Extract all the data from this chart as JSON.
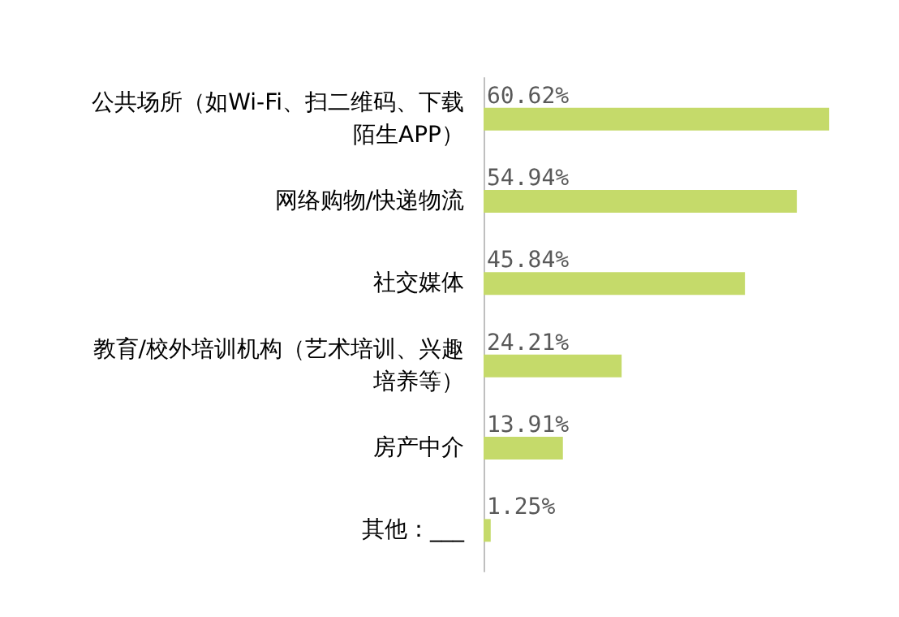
{
  "chart_data": {
    "type": "bar",
    "orientation": "horizontal",
    "categories": [
      "公共场所（如Wi-Fi、扫二维码、下载陌生APP）",
      "网络购物/快递物流",
      "社交媒体",
      "教育/校外培训机构（艺术培训、兴趣培养等）",
      "房产中介",
      "其他：___"
    ],
    "values": [
      60.62,
      54.94,
      45.84,
      24.21,
      13.91,
      1.25
    ],
    "value_labels": [
      "60.62%",
      "54.94%",
      "45.84%",
      "24.21%",
      "13.91%",
      "1.25%"
    ],
    "color": "#c5da6a"
  }
}
